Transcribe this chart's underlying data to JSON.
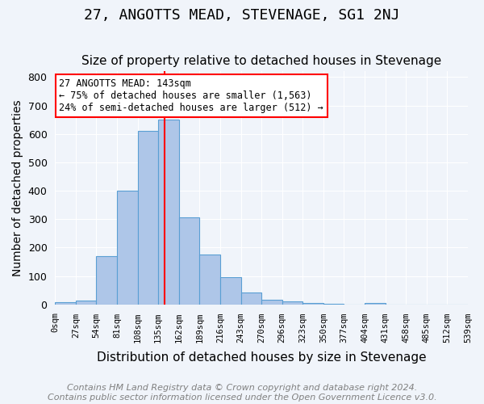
{
  "title": "27, ANGOTTS MEAD, STEVENAGE, SG1 2NJ",
  "subtitle": "Size of property relative to detached houses in Stevenage",
  "xlabel": "Distribution of detached houses by size in Stevenage",
  "ylabel": "Number of detached properties",
  "bin_labels": [
    "0sqm",
    "27sqm",
    "54sqm",
    "81sqm",
    "108sqm",
    "135sqm",
    "162sqm",
    "189sqm",
    "216sqm",
    "243sqm",
    "270sqm",
    "296sqm",
    "323sqm",
    "350sqm",
    "377sqm",
    "404sqm",
    "431sqm",
    "458sqm",
    "485sqm",
    "512sqm",
    "539sqm"
  ],
  "bar_values": [
    7,
    12,
    170,
    400,
    610,
    650,
    305,
    175,
    97,
    42,
    15,
    10,
    5,
    2,
    0,
    6,
    0,
    0,
    0,
    0
  ],
  "bar_color": "#aec6e8",
  "bar_edge_color": "#5a9fd4",
  "vline_x": 143,
  "vline_color": "red",
  "ylim": [
    0,
    820
  ],
  "yticks": [
    0,
    100,
    200,
    300,
    400,
    500,
    600,
    700,
    800
  ],
  "annotation_text": "27 ANGOTTS MEAD: 143sqm\n← 75% of detached houses are smaller (1,563)\n24% of semi-detached houses are larger (512) →",
  "annotation_box_color": "white",
  "annotation_box_edgecolor": "red",
  "footnote": "Contains HM Land Registry data © Crown copyright and database right 2024.\nContains public sector information licensed under the Open Government Licence v3.0.",
  "background_color": "#f0f4fa",
  "grid_color": "white",
  "title_fontsize": 13,
  "subtitle_fontsize": 11,
  "xlabel_fontsize": 11,
  "ylabel_fontsize": 10,
  "footnote_fontsize": 8,
  "bin_width": 27
}
